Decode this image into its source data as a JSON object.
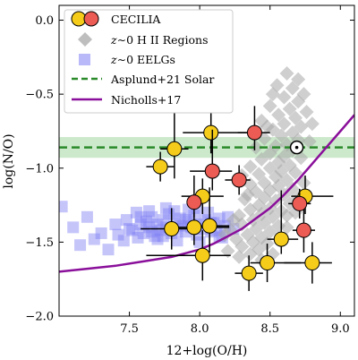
{
  "chart_data": {
    "type": "scatter",
    "xlabel": "12+log(O/H)",
    "ylabel": "log(N/O)",
    "xlim": [
      7.0,
      9.1
    ],
    "ylim": [
      -2.0,
      0.1
    ],
    "xticks": [
      7.5,
      8.0,
      8.5,
      9.0
    ],
    "xtick_labels": [
      "7.5",
      "8.0",
      "8.5",
      "9.0"
    ],
    "yticks": [
      0.0,
      -0.5,
      -1.0,
      -1.5,
      -2.0
    ],
    "ytick_labels": [
      "0.0",
      "−0.5",
      "−1.0",
      "−1.5",
      "−2.0"
    ],
    "legend_position": "top-left",
    "colors": {
      "cecilia_yellow": "#f6cc1a",
      "cecilia_red": "#ec5b54",
      "hii": "#a8a8a8",
      "eelg": "#7f7ff5",
      "solar": "#2a8a2a",
      "solar_band": "#bfe3bf",
      "nicholls": "#8a0f9a"
    },
    "series": [
      {
        "name": "CECILIA",
        "marker": "circle",
        "points_yellow": [
          {
            "x": 7.72,
            "y": -0.99,
            "xerr": [
              0.1,
              0.1
            ],
            "yerr": [
              0.1,
              0.1
            ]
          },
          {
            "x": 7.82,
            "y": -0.87,
            "xerr": [
              0.1,
              0.1
            ],
            "yerr": [
              0.2,
              0.28
            ]
          },
          {
            "x": 8.08,
            "y": -0.76,
            "xerr": [
              0.2,
              0.32
            ],
            "yerr": [
              0.14,
              0.2
            ]
          },
          {
            "x": 8.02,
            "y": -1.19,
            "xerr": [
              0.15,
              0.15
            ],
            "yerr": [
              0.12,
              0.12
            ]
          },
          {
            "x": 7.8,
            "y": -1.41,
            "xerr": [
              0.22,
              0.18
            ],
            "yerr": [
              0.14,
              0.14
            ]
          },
          {
            "x": 7.96,
            "y": -1.4,
            "xerr": [
              0.15,
              0.25
            ],
            "yerr": [
              0.12,
              0.1
            ]
          },
          {
            "x": 8.07,
            "y": -1.39,
            "xerr": [
              0.16,
              0.14
            ],
            "yerr": [
              0.18,
              0.26
            ]
          },
          {
            "x": 8.02,
            "y": -1.59,
            "xerr": [
              0.4,
              0.2
            ],
            "yerr": [
              0.17,
              0.17
            ]
          },
          {
            "x": 8.35,
            "y": -1.71,
            "xerr": [
              0.1,
              0.1
            ],
            "yerr": [
              0.12,
              0.12
            ]
          },
          {
            "x": 8.48,
            "y": -1.64,
            "xerr": [
              0.12,
              0.24
            ],
            "yerr": [
              0.13,
              0.13
            ]
          },
          {
            "x": 8.58,
            "y": -1.48,
            "xerr": [
              0.1,
              0.12
            ],
            "yerr": [
              0.1,
              0.33
            ]
          },
          {
            "x": 8.75,
            "y": -1.19,
            "xerr": [
              0.1,
              0.2
            ],
            "yerr": [
              0.12,
              0.14
            ]
          },
          {
            "x": 8.8,
            "y": -1.64,
            "xerr": [
              0.2,
              0.14
            ],
            "yerr": [
              0.14,
              0.14
            ]
          }
        ],
        "points_red": [
          {
            "x": 8.39,
            "y": -0.76,
            "xerr": [
              0.12,
              0.11
            ],
            "yerr": [
              0.12,
              0.18
            ]
          },
          {
            "x": 8.09,
            "y": -1.02,
            "xerr": [
              0.16,
              0.14
            ],
            "yerr": [
              0.13,
              0.28
            ]
          },
          {
            "x": 7.96,
            "y": -1.23,
            "xerr": [
              0.05,
              0.05
            ],
            "yerr": [
              0.1,
              0.18
            ]
          },
          {
            "x": 8.28,
            "y": -1.08,
            "xerr": [
              0.1,
              0.08
            ],
            "yerr": [
              0.1,
              0.1
            ]
          },
          {
            "x": 8.71,
            "y": -1.24,
            "xerr": [
              0.08,
              0.08
            ],
            "yerr": [
              0.1,
              0.1
            ]
          },
          {
            "x": 8.74,
            "y": -1.42,
            "xerr": [
              0.08,
              0.08
            ],
            "yerr": [
              0.15,
              0.15
            ]
          }
        ]
      },
      {
        "name": "z∼0 H II Regions",
        "marker": "diamond",
        "points": [
          [
            8.62,
            -0.36
          ],
          [
            8.7,
            -0.4
          ],
          [
            8.55,
            -0.44
          ],
          [
            8.66,
            -0.46
          ],
          [
            8.74,
            -0.5
          ],
          [
            8.6,
            -0.52
          ],
          [
            8.7,
            -0.55
          ],
          [
            8.5,
            -0.58
          ],
          [
            8.64,
            -0.6
          ],
          [
            8.76,
            -0.62
          ],
          [
            8.56,
            -0.64
          ],
          [
            8.68,
            -0.66
          ],
          [
            8.44,
            -0.68
          ],
          [
            8.6,
            -0.7
          ],
          [
            8.72,
            -0.72
          ],
          [
            8.52,
            -0.74
          ],
          [
            8.66,
            -0.76
          ],
          [
            8.58,
            -0.78
          ],
          [
            8.46,
            -0.8
          ],
          [
            8.7,
            -0.81
          ],
          [
            8.62,
            -0.84
          ],
          [
            8.54,
            -0.85
          ],
          [
            8.4,
            -0.86
          ],
          [
            8.66,
            -0.88
          ],
          [
            8.5,
            -0.9
          ],
          [
            8.6,
            -0.92
          ],
          [
            8.72,
            -0.93
          ],
          [
            8.44,
            -0.94
          ],
          [
            8.56,
            -0.96
          ],
          [
            8.64,
            -0.98
          ],
          [
            8.36,
            -0.99
          ],
          [
            8.5,
            -1.0
          ],
          [
            8.58,
            -1.02
          ],
          [
            8.68,
            -1.03
          ],
          [
            8.42,
            -1.04
          ],
          [
            8.54,
            -1.06
          ],
          [
            8.62,
            -1.08
          ],
          [
            8.46,
            -1.1
          ],
          [
            8.36,
            -1.11
          ],
          [
            8.56,
            -1.12
          ],
          [
            8.66,
            -1.14
          ],
          [
            8.5,
            -1.15
          ],
          [
            8.4,
            -1.16
          ],
          [
            8.6,
            -1.18
          ],
          [
            8.46,
            -1.2
          ],
          [
            8.32,
            -1.21
          ],
          [
            8.54,
            -1.22
          ],
          [
            8.64,
            -1.24
          ],
          [
            8.42,
            -1.25
          ],
          [
            8.5,
            -1.27
          ],
          [
            8.36,
            -1.28
          ],
          [
            8.58,
            -1.29
          ],
          [
            8.44,
            -1.31
          ],
          [
            8.28,
            -1.32
          ],
          [
            8.52,
            -1.33
          ],
          [
            8.38,
            -1.35
          ],
          [
            8.46,
            -1.37
          ],
          [
            8.3,
            -1.38
          ],
          [
            8.56,
            -1.39
          ],
          [
            8.4,
            -1.41
          ],
          [
            8.22,
            -1.42
          ],
          [
            8.5,
            -1.43
          ],
          [
            8.34,
            -1.45
          ],
          [
            8.44,
            -1.47
          ],
          [
            8.26,
            -1.48
          ],
          [
            8.38,
            -1.5
          ],
          [
            8.48,
            -1.51
          ],
          [
            8.3,
            -1.53
          ],
          [
            8.42,
            -1.55
          ],
          [
            8.2,
            -1.56
          ],
          [
            8.36,
            -1.58
          ],
          [
            8.52,
            -1.58
          ],
          [
            8.28,
            -1.6
          ],
          [
            8.44,
            -1.62
          ],
          [
            8.58,
            -1.47
          ],
          [
            8.62,
            -1.4
          ],
          [
            8.68,
            -1.3
          ],
          [
            8.24,
            -1.35
          ],
          [
            8.18,
            -1.45
          ],
          [
            8.48,
            -0.72
          ],
          [
            8.78,
            -0.82
          ],
          [
            8.8,
            -0.7
          ],
          [
            8.52,
            -0.5
          ],
          [
            8.34,
            -1.18
          ],
          [
            8.3,
            -1.05
          ],
          [
            8.74,
            -1.1
          ],
          [
            8.7,
            -1.2
          ],
          [
            8.62,
            -1.32
          ]
        ]
      },
      {
        "name": "z∼0 EELGs",
        "marker": "square",
        "points": [
          [
            7.02,
            -1.26
          ],
          [
            7.1,
            -1.4
          ],
          [
            7.15,
            -1.52
          ],
          [
            7.25,
            -1.48
          ],
          [
            7.35,
            -1.55
          ],
          [
            7.42,
            -1.45
          ],
          [
            7.48,
            -1.35
          ],
          [
            7.52,
            -1.42
          ],
          [
            7.55,
            -1.3
          ],
          [
            7.58,
            -1.38
          ],
          [
            7.6,
            -1.44
          ],
          [
            7.62,
            -1.36
          ],
          [
            7.64,
            -1.4
          ],
          [
            7.66,
            -1.33
          ],
          [
            7.68,
            -1.46
          ],
          [
            7.7,
            -1.38
          ],
          [
            7.72,
            -1.42
          ],
          [
            7.74,
            -1.35
          ],
          [
            7.76,
            -1.4
          ],
          [
            7.78,
            -1.31
          ],
          [
            7.8,
            -1.44
          ],
          [
            7.82,
            -1.37
          ],
          [
            7.84,
            -1.41
          ],
          [
            7.86,
            -1.34
          ],
          [
            7.88,
            -1.39
          ],
          [
            7.9,
            -1.43
          ],
          [
            7.92,
            -1.36
          ],
          [
            7.94,
            -1.4
          ],
          [
            7.96,
            -1.32
          ],
          [
            7.98,
            -1.45
          ],
          [
            8.0,
            -1.38
          ],
          [
            8.02,
            -1.41
          ],
          [
            8.04,
            -1.35
          ],
          [
            8.06,
            -1.3
          ],
          [
            8.08,
            -1.43
          ],
          [
            8.1,
            -1.37
          ],
          [
            8.12,
            -1.42
          ],
          [
            8.14,
            -1.34
          ],
          [
            8.16,
            -1.47
          ],
          [
            8.18,
            -1.39
          ],
          [
            8.2,
            -1.33
          ],
          [
            7.56,
            -1.47
          ],
          [
            7.64,
            -1.29
          ],
          [
            7.7,
            -1.48
          ],
          [
            7.76,
            -1.27
          ],
          [
            7.84,
            -1.49
          ],
          [
            7.92,
            -1.28
          ],
          [
            8.0,
            -1.5
          ],
          [
            7.5,
            -1.41
          ],
          [
            7.58,
            -1.33
          ],
          [
            7.66,
            -1.43
          ],
          [
            7.74,
            -1.46
          ],
          [
            7.82,
            -1.29
          ],
          [
            7.9,
            -1.35
          ],
          [
            7.98,
            -1.27
          ],
          [
            8.08,
            -1.37
          ],
          [
            8.24,
            -1.41
          ],
          [
            7.46,
            -1.49
          ],
          [
            7.4,
            -1.38
          ],
          [
            8.14,
            -1.46
          ],
          [
            7.3,
            -1.44
          ],
          [
            7.2,
            -1.33
          ]
        ]
      },
      {
        "name": "Asplund+21 Solar",
        "type": "hline",
        "y": -0.86,
        "band": [
          -0.93,
          -0.79
        ]
      },
      {
        "name": "Nicholls+17",
        "type": "line",
        "x": [
          7.0,
          7.2,
          7.4,
          7.6,
          7.8,
          8.0,
          8.1,
          8.2,
          8.3,
          8.4,
          8.5,
          8.6,
          8.7,
          8.8,
          8.9,
          9.0,
          9.1
        ],
        "y": [
          -1.7,
          -1.68,
          -1.66,
          -1.63,
          -1.6,
          -1.55,
          -1.51,
          -1.46,
          -1.41,
          -1.34,
          -1.27,
          -1.18,
          -1.08,
          -0.97,
          -0.86,
          -0.75,
          -0.64
        ]
      }
    ],
    "solar_marker": {
      "x": 8.69,
      "y": -0.86,
      "symbol": "⊙"
    }
  },
  "legend": {
    "items": [
      {
        "key": "cecilia",
        "label": "CECILIA"
      },
      {
        "key": "hii",
        "label_prefix": "z",
        "label_rest": "∼0 H II Regions"
      },
      {
        "key": "eelg",
        "label_prefix": "z",
        "label_rest": "∼0 EELGs"
      },
      {
        "key": "solar",
        "label": "Asplund+21 Solar"
      },
      {
        "key": "nicholls",
        "label": "Nicholls+17"
      }
    ]
  }
}
